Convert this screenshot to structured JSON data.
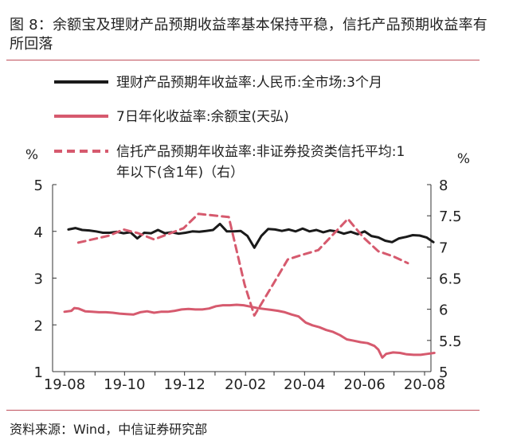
{
  "title": "图 8：余额宝及理财产品预期收益率基本保持平稳，信托产品预期收益率有所回落",
  "source": "资料来源：Wind，中信证券研究部",
  "chart_data": {
    "type": "line",
    "title": "图 8：余额宝及理财产品预期收益率基本保持平稳，信托产品预期收益率有所回落",
    "left_axis": {
      "unit": "%",
      "ylim": [
        1,
        5
      ],
      "ticks": [
        1,
        2,
        3,
        4,
        5
      ]
    },
    "right_axis": {
      "unit": "%",
      "ylim": [
        5,
        8
      ],
      "ticks": [
        5,
        5.5,
        6,
        6.5,
        7,
        7.5,
        8
      ],
      "tick_labels": [
        "5",
        "5.5",
        "6",
        "6.5",
        "7",
        "7.5",
        "8"
      ]
    },
    "x_axis": {
      "range": [
        "2019-08",
        "2020-08"
      ],
      "ticks": [
        "19-08",
        "19-10",
        "19-12",
        "20-02",
        "20-04",
        "20-06",
        "20-08"
      ]
    },
    "legend": [
      {
        "name": "理财产品预期年收益率:人民币:全市场:3个月",
        "color": "#1a1a1a",
        "style": "solid"
      },
      {
        "name": "7日年化收益率:余额宝(天弘)",
        "color": "#d65a6e",
        "style": "solid"
      },
      {
        "name": "信托产品预期年收益率:非证券投资类信托平均:1年以下(含1年)（右）",
        "color": "#d65a6e",
        "style": "dashed"
      }
    ],
    "legend_lines": [
      [
        "理财产品预期年收益率:人民币:全市场:3个月"
      ],
      [
        "7日年化收益率:余额宝(天弘)"
      ],
      [
        "信托产品预期年收益率:非证券投资类信托平均:1",
        "年以下(含1年)（右）"
      ]
    ],
    "series": [
      {
        "name": "理财产品预期年收益率:人民币:全市场:3个月",
        "axis": "left",
        "style": "solid",
        "color": "#1a1a1a",
        "points": [
          [
            "2019-08-05",
            4.04
          ],
          [
            "2019-08-12",
            4.07
          ],
          [
            "2019-08-19",
            4.03
          ],
          [
            "2019-08-26",
            4.02
          ],
          [
            "2019-09-02",
            4.0
          ],
          [
            "2019-09-09",
            3.97
          ],
          [
            "2019-09-16",
            3.97
          ],
          [
            "2019-09-23",
            3.99
          ],
          [
            "2019-09-30",
            3.96
          ],
          [
            "2019-10-07",
            3.98
          ],
          [
            "2019-10-14",
            3.85
          ],
          [
            "2019-10-21",
            3.97
          ],
          [
            "2019-10-28",
            3.96
          ],
          [
            "2019-11-04",
            4.03
          ],
          [
            "2019-11-11",
            3.96
          ],
          [
            "2019-11-18",
            3.98
          ],
          [
            "2019-11-25",
            3.95
          ],
          [
            "2019-12-02",
            3.97
          ],
          [
            "2019-12-09",
            4.0
          ],
          [
            "2019-12-16",
            3.99
          ],
          [
            "2019-12-23",
            4.01
          ],
          [
            "2019-12-30",
            4.03
          ],
          [
            "2020-01-06",
            4.16
          ],
          [
            "2020-01-13",
            4.0
          ],
          [
            "2020-01-20",
            4.0
          ],
          [
            "2020-01-27",
            4.01
          ],
          [
            "2020-02-03",
            3.9
          ],
          [
            "2020-02-10",
            3.65
          ],
          [
            "2020-02-17",
            3.9
          ],
          [
            "2020-02-24",
            4.05
          ],
          [
            "2020-03-02",
            4.04
          ],
          [
            "2020-03-09",
            4.01
          ],
          [
            "2020-03-16",
            4.04
          ],
          [
            "2020-03-23",
            4.0
          ],
          [
            "2020-03-30",
            4.06
          ],
          [
            "2020-04-06",
            4.0
          ],
          [
            "2020-04-13",
            4.03
          ],
          [
            "2020-04-20",
            3.98
          ],
          [
            "2020-04-27",
            4.02
          ],
          [
            "2020-05-04",
            4.0
          ],
          [
            "2020-05-11",
            3.95
          ],
          [
            "2020-05-18",
            3.99
          ],
          [
            "2020-05-25",
            3.94
          ],
          [
            "2020-06-01",
            4.0
          ],
          [
            "2020-06-08",
            3.9
          ],
          [
            "2020-06-15",
            3.87
          ],
          [
            "2020-06-22",
            3.8
          ],
          [
            "2020-06-29",
            3.77
          ],
          [
            "2020-07-06",
            3.85
          ],
          [
            "2020-07-13",
            3.88
          ],
          [
            "2020-07-20",
            3.92
          ],
          [
            "2020-07-27",
            3.91
          ],
          [
            "2020-08-03",
            3.87
          ],
          [
            "2020-08-10",
            3.77
          ]
        ]
      },
      {
        "name": "7日年化收益率:余额宝(天弘)",
        "axis": "left",
        "style": "solid",
        "color": "#d65a6e",
        "points": [
          [
            "2019-08-01",
            2.28
          ],
          [
            "2019-08-08",
            2.3
          ],
          [
            "2019-08-11",
            2.36
          ],
          [
            "2019-08-15",
            2.35
          ],
          [
            "2019-08-22",
            2.29
          ],
          [
            "2019-08-29",
            2.28
          ],
          [
            "2019-09-05",
            2.27
          ],
          [
            "2019-09-12",
            2.27
          ],
          [
            "2019-09-19",
            2.26
          ],
          [
            "2019-09-26",
            2.24
          ],
          [
            "2019-10-03",
            2.23
          ],
          [
            "2019-10-10",
            2.22
          ],
          [
            "2019-10-17",
            2.27
          ],
          [
            "2019-10-24",
            2.29
          ],
          [
            "2019-10-31",
            2.26
          ],
          [
            "2019-11-07",
            2.28
          ],
          [
            "2019-11-14",
            2.28
          ],
          [
            "2019-11-21",
            2.3
          ],
          [
            "2019-11-28",
            2.33
          ],
          [
            "2019-12-05",
            2.34
          ],
          [
            "2019-12-12",
            2.33
          ],
          [
            "2019-12-19",
            2.33
          ],
          [
            "2019-12-26",
            2.35
          ],
          [
            "2020-01-02",
            2.4
          ],
          [
            "2020-01-09",
            2.42
          ],
          [
            "2020-01-16",
            2.42
          ],
          [
            "2020-01-23",
            2.43
          ],
          [
            "2020-01-30",
            2.42
          ],
          [
            "2020-02-06",
            2.39
          ],
          [
            "2020-02-13",
            2.36
          ],
          [
            "2020-02-20",
            2.34
          ],
          [
            "2020-02-27",
            2.32
          ],
          [
            "2020-03-05",
            2.3
          ],
          [
            "2020-03-12",
            2.27
          ],
          [
            "2020-03-19",
            2.22
          ],
          [
            "2020-03-26",
            2.18
          ],
          [
            "2020-04-02",
            2.05
          ],
          [
            "2020-04-09",
            1.99
          ],
          [
            "2020-04-16",
            1.95
          ],
          [
            "2020-04-23",
            1.89
          ],
          [
            "2020-04-30",
            1.85
          ],
          [
            "2020-05-07",
            1.78
          ],
          [
            "2020-05-14",
            1.69
          ],
          [
            "2020-05-21",
            1.66
          ],
          [
            "2020-05-28",
            1.63
          ],
          [
            "2020-06-04",
            1.61
          ],
          [
            "2020-06-11",
            1.55
          ],
          [
            "2020-06-15",
            1.47
          ],
          [
            "2020-06-19",
            1.3
          ],
          [
            "2020-06-23",
            1.38
          ],
          [
            "2020-06-30",
            1.41
          ],
          [
            "2020-07-07",
            1.4
          ],
          [
            "2020-07-14",
            1.37
          ],
          [
            "2020-07-21",
            1.36
          ],
          [
            "2020-07-28",
            1.36
          ],
          [
            "2020-08-04",
            1.38
          ],
          [
            "2020-08-11",
            1.4
          ]
        ]
      },
      {
        "name": "信托产品预期年收益率:非证券投资类信托平均:1年以下(含1年)（右）",
        "axis": "right",
        "style": "dashed",
        "color": "#d65a6e",
        "points": [
          [
            "2019-08-15",
            7.07
          ],
          [
            "2019-09-15",
            7.18
          ],
          [
            "2019-09-30",
            7.28
          ],
          [
            "2019-10-15",
            7.22
          ],
          [
            "2019-10-31",
            7.12
          ],
          [
            "2019-11-30",
            7.3
          ],
          [
            "2019-12-15",
            7.53
          ],
          [
            "2020-01-15",
            7.48
          ],
          [
            "2020-01-31",
            6.4
          ],
          [
            "2020-02-10",
            5.9
          ],
          [
            "2020-02-29",
            6.4
          ],
          [
            "2020-03-15",
            6.8
          ],
          [
            "2020-03-31",
            6.88
          ],
          [
            "2020-04-15",
            6.95
          ],
          [
            "2020-05-15",
            7.45
          ],
          [
            "2020-05-31",
            7.15
          ],
          [
            "2020-06-15",
            6.93
          ],
          [
            "2020-06-30",
            6.85
          ],
          [
            "2020-07-15",
            6.74
          ]
        ]
      }
    ]
  }
}
